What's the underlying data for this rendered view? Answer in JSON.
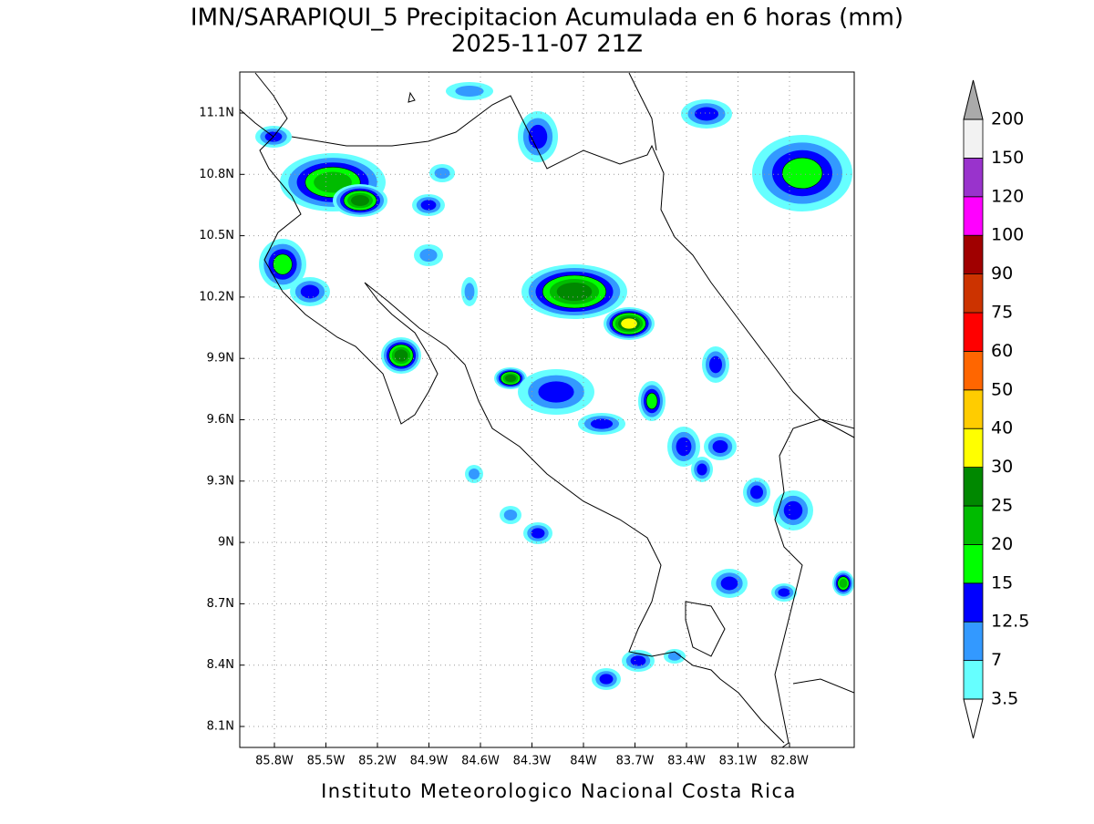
{
  "title": "IMN/SARAPIQUI_5 Precipitacion Acumulada en 6 horas (mm)",
  "subtitle": "2025-11-07 21Z",
  "footer": "Instituto Meteorologico Nacional Costa Rica",
  "map": {
    "x_ticks": [
      "85.8W",
      "85.5W",
      "85.2W",
      "84.9W",
      "84.6W",
      "84.3W",
      "84W",
      "83.7W",
      "83.4W",
      "83.1W",
      "82.8W"
    ],
    "y_ticks": [
      "11.1N",
      "10.8N",
      "10.5N",
      "10.2N",
      "9.9N",
      "9.6N",
      "9.3N",
      "9N",
      "8.7N",
      "8.4N",
      "8.1N"
    ],
    "grid": true
  },
  "colorbar": {
    "levels": [
      3.5,
      7,
      12.5,
      15,
      20,
      25,
      30,
      40,
      50,
      60,
      75,
      90,
      100,
      120,
      150,
      200
    ],
    "colors": [
      "#66ffff",
      "#3399ff",
      "#0000ff",
      "#00ff00",
      "#00bb00",
      "#008800",
      "#ffff00",
      "#ffcc00",
      "#ff6600",
      "#ff0000",
      "#cc3300",
      "#a00000",
      "#ff00ff",
      "#9933cc",
      "#f2f2f2"
    ],
    "over_color": "#aaaaaa",
    "under_color": "#ffffff"
  }
}
